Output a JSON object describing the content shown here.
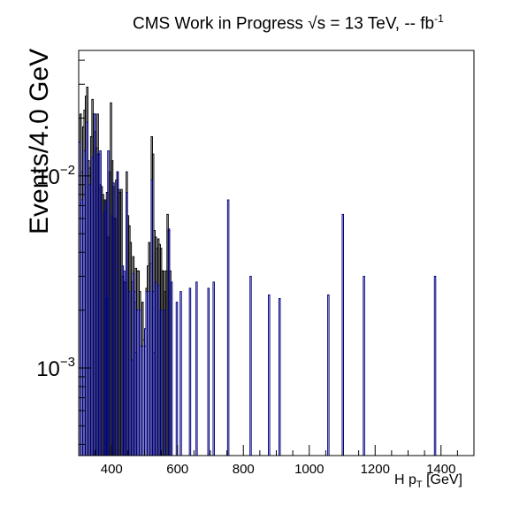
{
  "title": {
    "main": "CMS Work in Progress",
    "energy_prefix": "√s = 13 TeV, -- fb",
    "energy_sup": "-1"
  },
  "axes": {
    "ylabel": "Events/4.0 GeV",
    "xlabel_main": "H p",
    "xlabel_sub": "T",
    "xlabel_unit": " [GeV]"
  },
  "colors": {
    "black_hist": "#000000",
    "blue_hist": "#000080",
    "frame": "#000000"
  },
  "chart_data": {
    "type": "bar",
    "log_y": true,
    "xlim": [
      300,
      1500
    ],
    "ylim": [
      0.00035,
      0.045
    ],
    "x_ticks": [
      400,
      600,
      800,
      1000,
      1200,
      1400
    ],
    "y_ticks": [
      {
        "value": 0.01,
        "base": "10",
        "exp": "−2"
      },
      {
        "value": 0.001,
        "base": "10",
        "exp": "−3"
      }
    ],
    "bin_width": 4.0,
    "series": [
      {
        "values": [
          [
            300,
            0.015
          ],
          [
            304,
            0.021
          ],
          [
            308,
            0.0105
          ],
          [
            312,
            0.018
          ],
          [
            316,
            0.022
          ],
          [
            320,
            0.026
          ],
          [
            324,
            0.029
          ],
          [
            328,
            0.012
          ],
          [
            332,
            0.011
          ],
          [
            336,
            0.016
          ],
          [
            340,
            0.025
          ],
          [
            344,
            0.021
          ],
          [
            348,
            0.017
          ],
          [
            352,
            0.014
          ],
          [
            356,
            0.021
          ],
          [
            360,
            0.013
          ],
          [
            364,
            0.009
          ],
          [
            368,
            0.0088
          ],
          [
            372,
            0.008
          ],
          [
            376,
            0.0075
          ],
          [
            380,
            0.0075
          ],
          [
            384,
            0.0082
          ],
          [
            388,
            0.0048
          ],
          [
            392,
            0.0105
          ],
          [
            396,
            0.024
          ],
          [
            400,
            0.012
          ],
          [
            404,
            0.0088
          ],
          [
            408,
            0.006
          ],
          [
            412,
            0.0095
          ],
          [
            416,
            0.0105
          ],
          [
            420,
            0.0085
          ],
          [
            424,
            0.0082
          ],
          [
            428,
            0.0085
          ],
          [
            432,
            0.003
          ],
          [
            436,
            0.0028
          ],
          [
            440,
            0.0028
          ],
          [
            444,
            0.0105
          ],
          [
            448,
            0.0062
          ],
          [
            452,
            0.0055
          ],
          [
            456,
            0.0045
          ],
          [
            460,
            0.0028
          ],
          [
            464,
            0.0038
          ],
          [
            468,
            0.0022
          ],
          [
            472,
            0.0033
          ],
          [
            476,
            0.0032
          ],
          [
            480,
            0.0032
          ],
          [
            484,
            0.0025
          ],
          [
            488,
            0.0013
          ],
          [
            492,
            0.0022
          ],
          [
            496,
            0.0014
          ],
          [
            500,
            0.0013
          ],
          [
            504,
            0.0026
          ],
          [
            508,
            0.0034
          ],
          [
            512,
            0.0045
          ],
          [
            516,
            0.0035
          ],
          [
            520,
            0.016
          ],
          [
            524,
            0.013
          ],
          [
            528,
            0.0052
          ],
          [
            532,
            0.0048
          ],
          [
            536,
            0.0042
          ],
          [
            540,
            0.0047
          ],
          [
            544,
            0.0044
          ],
          [
            548,
            0.0042
          ],
          [
            552,
            0.0032
          ],
          [
            556,
            0.0032
          ],
          [
            560,
            0.0025
          ],
          [
            564,
            0.0032
          ],
          [
            568,
            0.0063
          ],
          [
            572,
            0.0052
          ],
          [
            576,
            0.0032
          ]
        ]
      },
      {
        "values": [
          [
            300,
            0.015
          ],
          [
            304,
            0.0072
          ],
          [
            308,
            0.0075
          ],
          [
            316,
            0.0135
          ],
          [
            324,
            0.019
          ],
          [
            332,
            0.009
          ],
          [
            340,
            0.0125
          ],
          [
            348,
            0.021
          ],
          [
            356,
            0.013
          ],
          [
            364,
            0.0135
          ],
          [
            376,
            0.0065
          ],
          [
            380,
            0.0073
          ],
          [
            384,
            0.0023
          ],
          [
            388,
            0.0135
          ],
          [
            400,
            0.0062
          ],
          [
            404,
            0.0092
          ],
          [
            416,
            0.0105
          ],
          [
            432,
            0.0034
          ],
          [
            436,
            0.0032
          ],
          [
            444,
            0.0082
          ],
          [
            452,
            0.0025
          ],
          [
            460,
            0.0011
          ],
          [
            464,
            0.0031
          ],
          [
            468,
            0.0025
          ],
          [
            472,
            0.0012
          ],
          [
            476,
            0.002
          ],
          [
            484,
            0.002
          ],
          [
            492,
            0.0013
          ],
          [
            500,
            0.0016
          ],
          [
            504,
            0.0025
          ],
          [
            512,
            0.0025
          ],
          [
            520,
            0.0095
          ],
          [
            524,
            0.0025
          ],
          [
            528,
            0.0012
          ],
          [
            532,
            0.0028
          ],
          [
            540,
            0.0027
          ],
          [
            548,
            0.002
          ],
          [
            560,
            0.002
          ],
          [
            572,
            0.0053
          ],
          [
            580,
            0.0028
          ],
          [
            596,
            0.0022
          ],
          [
            608,
            0.0025
          ],
          [
            636,
            0.0026
          ],
          [
            656,
            0.0028
          ],
          [
            692,
            0.0026
          ],
          [
            708,
            0.0028
          ],
          [
            752,
            0.0075
          ],
          [
            820,
            0.003
          ],
          [
            876,
            0.0024
          ],
          [
            908,
            0.0023
          ],
          [
            1056,
            0.0024
          ],
          [
            1100,
            0.0063
          ],
          [
            1164,
            0.003
          ],
          [
            1380,
            0.003
          ]
        ]
      }
    ]
  }
}
